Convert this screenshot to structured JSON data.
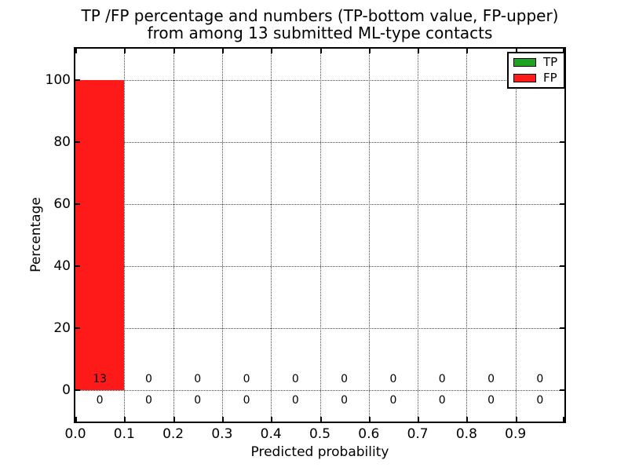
{
  "figure": {
    "background": "#ffffff"
  },
  "chart_data": {
    "type": "bar",
    "title_lines": [
      "TP /FP percentage and numbers (TP-bottom value, FP-upper)",
      "from among 13 submitted ML-type contacts"
    ],
    "xlabel": "Predicted probability",
    "ylabel": "Percentage",
    "xlim": [
      0.0,
      1.0
    ],
    "ylim": [
      -10,
      110
    ],
    "xticks": [
      0.0,
      0.1,
      0.2,
      0.3,
      0.4,
      0.5,
      0.6,
      0.7,
      0.8,
      0.9,
      1.0
    ],
    "xtick_labels": [
      "0.0",
      "0.1",
      "0.2",
      "0.3",
      "0.4",
      "0.5",
      "0.6",
      "0.7",
      "0.8",
      "0.9",
      ""
    ],
    "yticks": [
      0,
      20,
      40,
      60,
      80,
      100
    ],
    "ytick_labels": [
      "0",
      "20",
      "40",
      "60",
      "80",
      "100"
    ],
    "bin_width": 0.1,
    "bin_starts": [
      0.0,
      0.1,
      0.2,
      0.3,
      0.4,
      0.5,
      0.6,
      0.7,
      0.8,
      0.9
    ],
    "series": [
      {
        "name": "TP",
        "color": "#1ea31e",
        "percentages": [
          0,
          0,
          0,
          0,
          0,
          0,
          0,
          0,
          0,
          0
        ],
        "counts": [
          0,
          0,
          0,
          0,
          0,
          0,
          0,
          0,
          0,
          0
        ],
        "count_label_y": -3.2
      },
      {
        "name": "FP",
        "color": "#ff1a1a",
        "percentages": [
          100,
          0,
          0,
          0,
          0,
          0,
          0,
          0,
          0,
          0
        ],
        "counts": [
          13,
          0,
          0,
          0,
          0,
          0,
          0,
          0,
          0,
          0
        ],
        "count_label_y": 3.6
      }
    ],
    "legend": {
      "position": "upper right",
      "entries": [
        {
          "label": "TP",
          "color": "#1ea31e"
        },
        {
          "label": "FP",
          "color": "#ff1a1a"
        }
      ]
    },
    "grid": {
      "on": true,
      "style": "dotted",
      "color": "#4a4a4a"
    }
  }
}
